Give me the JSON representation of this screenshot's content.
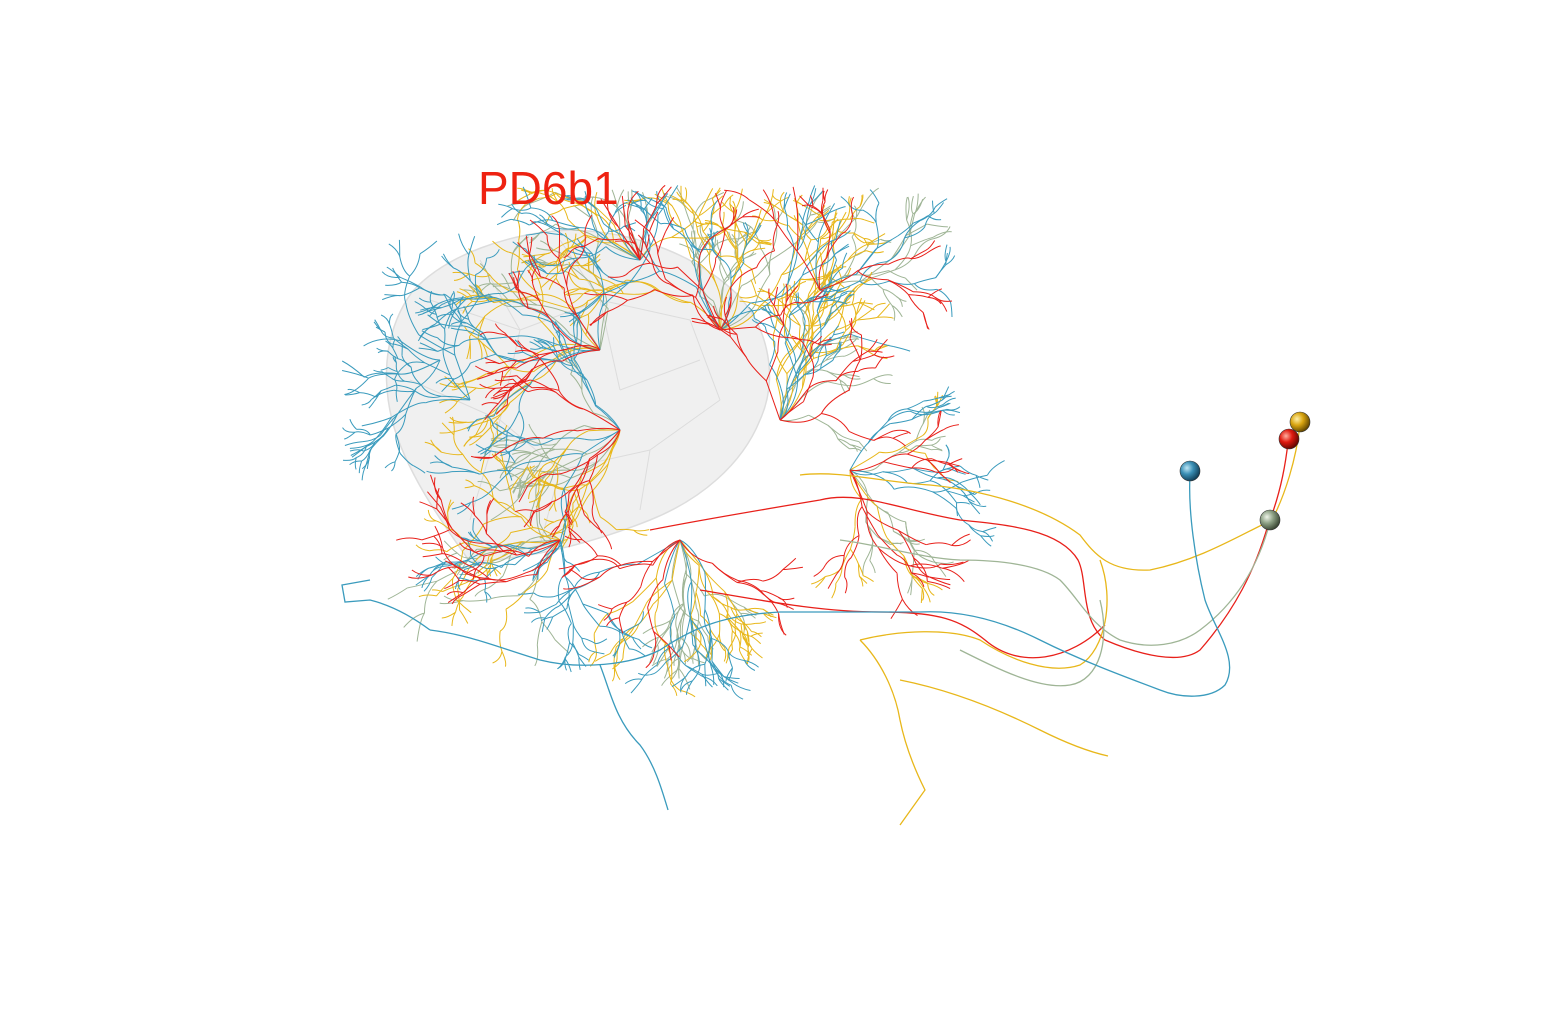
{
  "label": {
    "text": "PD6b1",
    "color": "#ee2211"
  },
  "neuropil": {
    "fill": "#eeeeee",
    "stroke": "#d8d8d8"
  },
  "neurons": [
    {
      "name": "neuron-blue",
      "color": "#3a9bbd"
    },
    {
      "name": "neuron-red",
      "color": "#e8201a"
    },
    {
      "name": "neuron-gold",
      "color": "#e8b71a"
    },
    {
      "name": "neuron-sage",
      "color": "#9fb596"
    }
  ]
}
